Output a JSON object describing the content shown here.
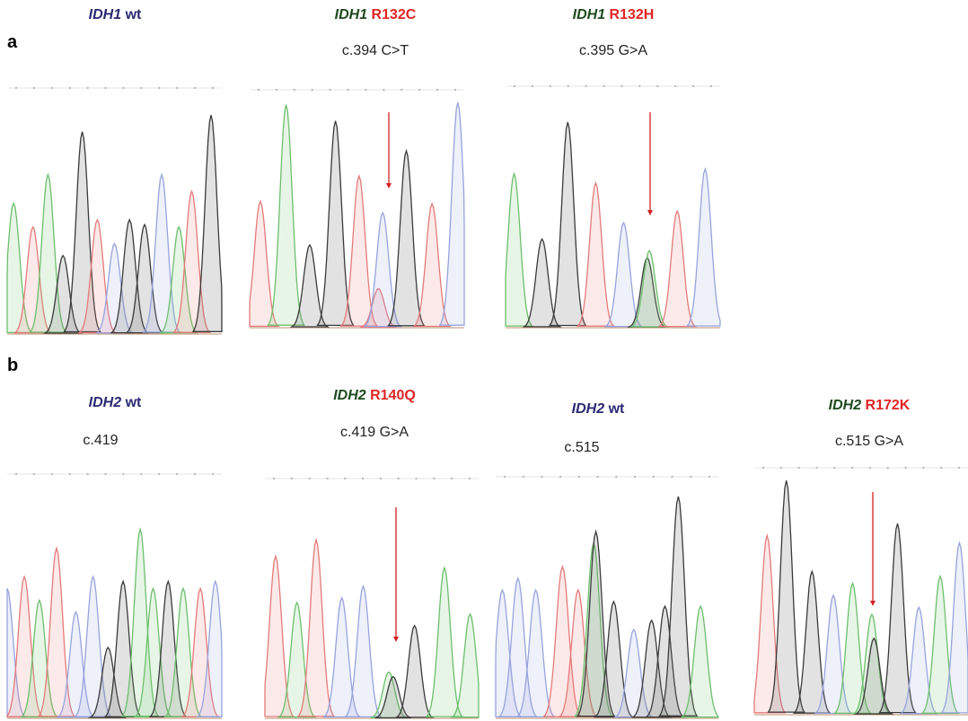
{
  "panels": [
    {
      "label": "a",
      "traces": [
        {
          "gene": "IDH1",
          "variant": "wt",
          "gene_color": "#2b2a72",
          "variant_color": "#2b2a72"
        },
        {
          "gene": "IDH1",
          "variant": "R132C",
          "cdna": "c.394 C>T",
          "gene_color": "#1e4a1e",
          "variant_color": "#e02424"
        },
        {
          "gene": "IDH1",
          "variant": "R132H",
          "cdna": "c.395 G>A",
          "gene_color": "#1e4a1e",
          "variant_color": "#e02424"
        }
      ]
    },
    {
      "label": "b",
      "traces": [
        {
          "gene": "IDH2",
          "variant": "wt",
          "cdna": "c.419",
          "gene_color": "#2b2a72",
          "variant_color": "#2b2a72"
        },
        {
          "gene": "IDH2",
          "variant": "R140Q",
          "cdna": "c.419 G>A",
          "gene_color": "#1e4a1e",
          "variant_color": "#e02424"
        },
        {
          "gene": "IDH2",
          "variant": "wt",
          "cdna": "c.515",
          "gene_color": "#2b2a72",
          "variant_color": "#2b2a72"
        },
        {
          "gene": "IDH2",
          "variant": "R172K",
          "cdna": "c.515 G>A",
          "gene_color": "#1e4a1e",
          "variant_color": "#e02424"
        }
      ]
    }
  ]
}
